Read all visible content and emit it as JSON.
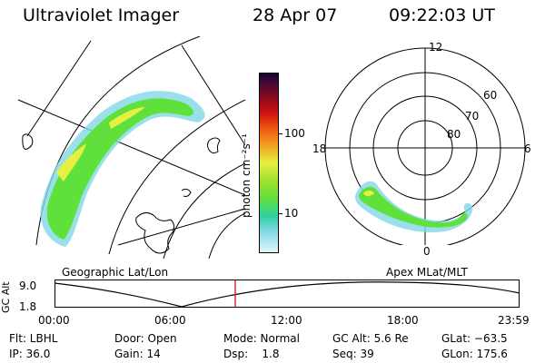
{
  "header": {
    "instrument": "Ultraviolet Imager",
    "date": "28 Apr 07",
    "time": "09:22:03 UT"
  },
  "colorbar": {
    "label": "photon cm⁻²s⁻¹",
    "ticks": [
      "100",
      "10"
    ]
  },
  "geo_panel": {
    "caption": "Geographic Lat/Lon"
  },
  "polar_panel": {
    "caption": "Apex MLat/MLT",
    "mlt_labels": {
      "top": "12",
      "left": "18",
      "right": "6",
      "bottom": "0"
    },
    "lat_labels": [
      "60",
      "70",
      "80"
    ]
  },
  "altitude_plot": {
    "ylabel": "GC Alt",
    "yticks": [
      "9.0",
      "1.8"
    ],
    "xticks": [
      "00:00",
      "06:00",
      "12:00",
      "18:00",
      "23:59"
    ]
  },
  "footer": {
    "row1": [
      "Flt: LBHL",
      "Door: Open",
      "Mode: Normal",
      "GC Alt: 5.6 Re",
      "GLat: −63.5"
    ],
    "row2": [
      "IP: 36.0",
      "Gain: 14",
      "Dsp:    1.8",
      "Seq: 39",
      "GLon: 175.6"
    ]
  },
  "colors": {
    "aurora_green": "#5fe03a",
    "aurora_yellow": "#e6f040",
    "aurora_cyan": "#7fd8e6",
    "time_marker": "#cc2020"
  }
}
